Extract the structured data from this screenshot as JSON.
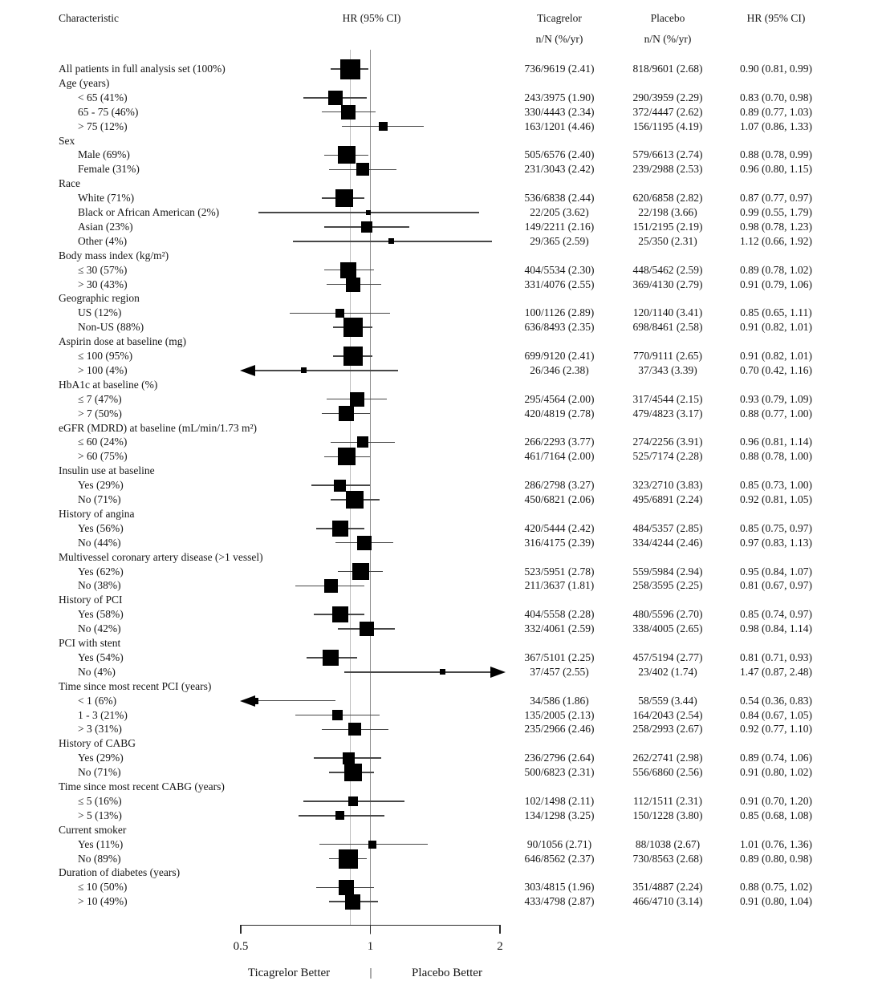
{
  "figure": {
    "col_headers": {
      "characteristic": "Characteristic",
      "plot_hr": "HR (95% CI)",
      "ticagrelor": "Ticagrelor",
      "placebo": "Placebo",
      "rate_unit": "n/N (%/yr)",
      "hr_col": "HR (95% CI)"
    },
    "footer": {
      "left_label": "Ticagrelor Better",
      "separator": "|",
      "right_label": "Placebo Better"
    }
  },
  "chart_data": {
    "type": "forest",
    "x_scale": "log",
    "xlim": [
      0.5,
      2
    ],
    "x_ticks": [
      "0.5",
      "1",
      "2"
    ],
    "reference_line_hr": 1.0,
    "overall_hr_line": 0.9,
    "columns": [
      "Characteristic",
      "HR (95% CI)",
      "Ticagrelor n/N (%/yr)",
      "Placebo n/N (%/yr)",
      "HR (95% CI)"
    ],
    "rows": [
      {
        "label": "All patients in full analysis set (100%)",
        "indent": false,
        "weight_pct": 100,
        "ticagrelor": "736/9619 (2.41)",
        "placebo": "818/9601 (2.68)",
        "hr_text": "0.90 (0.81, 0.99)",
        "hr": 0.9,
        "lo": 0.81,
        "hi": 0.99,
        "arrow": null
      },
      {
        "label": "Age (years)",
        "group": true
      },
      {
        "label": "< 65 (41%)",
        "indent": true,
        "weight_pct": 41,
        "ticagrelor": "243/3975 (1.90)",
        "placebo": "290/3959 (2.29)",
        "hr_text": "0.83 (0.70, 0.98)",
        "hr": 0.83,
        "lo": 0.7,
        "hi": 0.98,
        "arrow": null
      },
      {
        "label": "65 - 75 (46%)",
        "indent": true,
        "weight_pct": 46,
        "ticagrelor": "330/4443 (2.34)",
        "placebo": "372/4447 (2.62)",
        "hr_text": "0.89 (0.77, 1.03)",
        "hr": 0.89,
        "lo": 0.77,
        "hi": 1.03,
        "arrow": null
      },
      {
        "label": "> 75 (12%)",
        "indent": true,
        "weight_pct": 12,
        "ticagrelor": "163/1201 (4.46)",
        "placebo": "156/1195 (4.19)",
        "hr_text": "1.07 (0.86, 1.33)",
        "hr": 1.07,
        "lo": 0.86,
        "hi": 1.33,
        "arrow": null
      },
      {
        "label": "Sex",
        "group": true
      },
      {
        "label": "Male (69%)",
        "indent": true,
        "weight_pct": 69,
        "ticagrelor": "505/6576 (2.40)",
        "placebo": "579/6613 (2.74)",
        "hr_text": "0.88 (0.78, 0.99)",
        "hr": 0.88,
        "lo": 0.78,
        "hi": 0.99,
        "arrow": null
      },
      {
        "label": "Female (31%)",
        "indent": true,
        "weight_pct": 31,
        "ticagrelor": "231/3043 (2.42)",
        "placebo": "239/2988 (2.53)",
        "hr_text": "0.96 (0.80, 1.15)",
        "hr": 0.96,
        "lo": 0.8,
        "hi": 1.15,
        "arrow": null
      },
      {
        "label": "Race",
        "group": true
      },
      {
        "label": "White (71%)",
        "indent": true,
        "weight_pct": 71,
        "ticagrelor": "536/6838 (2.44)",
        "placebo": "620/6858 (2.82)",
        "hr_text": "0.87 (0.77, 0.97)",
        "hr": 0.87,
        "lo": 0.77,
        "hi": 0.97,
        "arrow": null
      },
      {
        "label": "Black or African American (2%)",
        "indent": true,
        "weight_pct": 2,
        "ticagrelor": "22/205 (3.62)",
        "placebo": "22/198 (3.66)",
        "hr_text": "0.99 (0.55, 1.79)",
        "hr": 0.99,
        "lo": 0.55,
        "hi": 1.79,
        "arrow": null
      },
      {
        "label": "Asian (23%)",
        "indent": true,
        "weight_pct": 23,
        "ticagrelor": "149/2211 (2.16)",
        "placebo": "151/2195 (2.19)",
        "hr_text": "0.98 (0.78, 1.23)",
        "hr": 0.98,
        "lo": 0.78,
        "hi": 1.23,
        "arrow": null
      },
      {
        "label": "Other (4%)",
        "indent": true,
        "weight_pct": 4,
        "ticagrelor": "29/365 (2.59)",
        "placebo": "25/350 (2.31)",
        "hr_text": "1.12 (0.66, 1.92)",
        "hr": 1.12,
        "lo": 0.66,
        "hi": 1.92,
        "arrow": null
      },
      {
        "label": "Body mass index (kg/m²)",
        "group": true
      },
      {
        "label": "≤ 30 (57%)",
        "indent": true,
        "weight_pct": 57,
        "ticagrelor": "404/5534 (2.30)",
        "placebo": "448/5462 (2.59)",
        "hr_text": "0.89 (0.78, 1.02)",
        "hr": 0.89,
        "lo": 0.78,
        "hi": 1.02,
        "arrow": null
      },
      {
        "label": "> 30 (43%)",
        "indent": true,
        "weight_pct": 43,
        "ticagrelor": "331/4076 (2.55)",
        "placebo": "369/4130 (2.79)",
        "hr_text": "0.91 (0.79, 1.06)",
        "hr": 0.91,
        "lo": 0.79,
        "hi": 1.06,
        "arrow": null
      },
      {
        "label": "Geographic region",
        "group": true
      },
      {
        "label": "US (12%)",
        "indent": true,
        "weight_pct": 12,
        "ticagrelor": "100/1126 (2.89)",
        "placebo": "120/1140 (3.41)",
        "hr_text": "0.85 (0.65, 1.11)",
        "hr": 0.85,
        "lo": 0.65,
        "hi": 1.11,
        "arrow": null
      },
      {
        "label": "Non-US (88%)",
        "indent": true,
        "weight_pct": 88,
        "ticagrelor": "636/8493 (2.35)",
        "placebo": "698/8461 (2.58)",
        "hr_text": "0.91 (0.82, 1.01)",
        "hr": 0.91,
        "lo": 0.82,
        "hi": 1.01,
        "arrow": null
      },
      {
        "label": "Aspirin dose at baseline (mg)",
        "group": true
      },
      {
        "label": "≤ 100 (95%)",
        "indent": true,
        "weight_pct": 95,
        "ticagrelor": "699/9120 (2.41)",
        "placebo": "770/9111 (2.65)",
        "hr_text": "0.91 (0.82, 1.01)",
        "hr": 0.91,
        "lo": 0.82,
        "hi": 1.01,
        "arrow": null
      },
      {
        "label": "> 100 (4%)",
        "indent": true,
        "weight_pct": 4,
        "ticagrelor": "26/346 (2.38)",
        "placebo": "37/343 (3.39)",
        "hr_text": "0.70 (0.42, 1.16)",
        "hr": 0.7,
        "lo": 0.42,
        "hi": 1.16,
        "arrow": "left"
      },
      {
        "label": "HbA1c at baseline (%)",
        "group": true
      },
      {
        "label": "≤ 7 (47%)",
        "indent": true,
        "weight_pct": 47,
        "ticagrelor": "295/4564 (2.00)",
        "placebo": "317/4544 (2.15)",
        "hr_text": "0.93 (0.79, 1.09)",
        "hr": 0.93,
        "lo": 0.79,
        "hi": 1.09,
        "arrow": null
      },
      {
        "label": "> 7 (50%)",
        "indent": true,
        "weight_pct": 50,
        "ticagrelor": "420/4819 (2.78)",
        "placebo": "479/4823 (3.17)",
        "hr_text": "0.88 (0.77, 1.00)",
        "hr": 0.88,
        "lo": 0.77,
        "hi": 1.0,
        "arrow": null
      },
      {
        "label": "eGFR (MDRD) at baseline (mL/min/1.73 m²)",
        "group": true
      },
      {
        "label": "≤ 60 (24%)",
        "indent": true,
        "weight_pct": 24,
        "ticagrelor": "266/2293 (3.77)",
        "placebo": "274/2256 (3.91)",
        "hr_text": "0.96 (0.81, 1.14)",
        "hr": 0.96,
        "lo": 0.81,
        "hi": 1.14,
        "arrow": null
      },
      {
        "label": "> 60 (75%)",
        "indent": true,
        "weight_pct": 75,
        "ticagrelor": "461/7164 (2.00)",
        "placebo": "525/7174 (2.28)",
        "hr_text": "0.88 (0.78, 1.00)",
        "hr": 0.88,
        "lo": 0.78,
        "hi": 1.0,
        "arrow": null
      },
      {
        "label": "Insulin use at baseline",
        "group": true
      },
      {
        "label": "Yes (29%)",
        "indent": true,
        "weight_pct": 29,
        "ticagrelor": "286/2798 (3.27)",
        "placebo": "323/2710 (3.83)",
        "hr_text": "0.85 (0.73, 1.00)",
        "hr": 0.85,
        "lo": 0.73,
        "hi": 1.0,
        "arrow": null
      },
      {
        "label": "No (71%)",
        "indent": true,
        "weight_pct": 71,
        "ticagrelor": "450/6821 (2.06)",
        "placebo": "495/6891 (2.24)",
        "hr_text": "0.92 (0.81, 1.05)",
        "hr": 0.92,
        "lo": 0.81,
        "hi": 1.05,
        "arrow": null
      },
      {
        "label": "History of angina",
        "group": true
      },
      {
        "label": "Yes (56%)",
        "indent": true,
        "weight_pct": 56,
        "ticagrelor": "420/5444 (2.42)",
        "placebo": "484/5357 (2.85)",
        "hr_text": "0.85 (0.75, 0.97)",
        "hr": 0.85,
        "lo": 0.75,
        "hi": 0.97,
        "arrow": null
      },
      {
        "label": "No (44%)",
        "indent": true,
        "weight_pct": 44,
        "ticagrelor": "316/4175 (2.39)",
        "placebo": "334/4244 (2.46)",
        "hr_text": "0.97 (0.83, 1.13)",
        "hr": 0.97,
        "lo": 0.83,
        "hi": 1.13,
        "arrow": null
      },
      {
        "label": "Multivessel coronary artery disease (>1 vessel)",
        "group": true
      },
      {
        "label": "Yes (62%)",
        "indent": true,
        "weight_pct": 62,
        "ticagrelor": "523/5951 (2.78)",
        "placebo": "559/5984 (2.94)",
        "hr_text": "0.95 (0.84, 1.07)",
        "hr": 0.95,
        "lo": 0.84,
        "hi": 1.07,
        "arrow": null
      },
      {
        "label": "No (38%)",
        "indent": true,
        "weight_pct": 38,
        "ticagrelor": "211/3637 (1.81)",
        "placebo": "258/3595 (2.25)",
        "hr_text": "0.81 (0.67, 0.97)",
        "hr": 0.81,
        "lo": 0.67,
        "hi": 0.97,
        "arrow": null
      },
      {
        "label": "History of PCI",
        "group": true
      },
      {
        "label": "Yes (58%)",
        "indent": true,
        "weight_pct": 58,
        "ticagrelor": "404/5558 (2.28)",
        "placebo": "480/5596 (2.70)",
        "hr_text": "0.85 (0.74, 0.97)",
        "hr": 0.85,
        "lo": 0.74,
        "hi": 0.97,
        "arrow": null
      },
      {
        "label": "No (42%)",
        "indent": true,
        "weight_pct": 42,
        "ticagrelor": "332/4061 (2.59)",
        "placebo": "338/4005 (2.65)",
        "hr_text": "0.98 (0.84, 1.14)",
        "hr": 0.98,
        "lo": 0.84,
        "hi": 1.14,
        "arrow": null
      },
      {
        "label": "PCI with stent",
        "group": true
      },
      {
        "label": "Yes (54%)",
        "indent": true,
        "weight_pct": 54,
        "ticagrelor": "367/5101 (2.25)",
        "placebo": "457/5194 (2.77)",
        "hr_text": "0.81 (0.71, 0.93)",
        "hr": 0.81,
        "lo": 0.71,
        "hi": 0.93,
        "arrow": null
      },
      {
        "label": "No (4%)",
        "indent": true,
        "weight_pct": 4,
        "ticagrelor": "37/457 (2.55)",
        "placebo": "23/402 (1.74)",
        "hr_text": "1.47 (0.87, 2.48)",
        "hr": 1.47,
        "lo": 0.87,
        "hi": 2.48,
        "arrow": "right"
      },
      {
        "label": "Time since most recent PCI (years)",
        "group": true
      },
      {
        "label": "< 1 (6%)",
        "indent": true,
        "weight_pct": 6,
        "ticagrelor": "34/586 (1.86)",
        "placebo": "58/559 (3.44)",
        "hr_text": "0.54 (0.36, 0.83)",
        "hr": 0.54,
        "lo": 0.36,
        "hi": 0.83,
        "arrow": "left"
      },
      {
        "label": "1 - 3 (21%)",
        "indent": true,
        "weight_pct": 21,
        "ticagrelor": "135/2005 (2.13)",
        "placebo": "164/2043 (2.54)",
        "hr_text": "0.84 (0.67, 1.05)",
        "hr": 0.84,
        "lo": 0.67,
        "hi": 1.05,
        "arrow": null
      },
      {
        "label": "> 3 (31%)",
        "indent": true,
        "weight_pct": 31,
        "ticagrelor": "235/2966 (2.46)",
        "placebo": "258/2993 (2.67)",
        "hr_text": "0.92 (0.77, 1.10)",
        "hr": 0.92,
        "lo": 0.77,
        "hi": 1.1,
        "arrow": null
      },
      {
        "label": "History of CABG",
        "group": true
      },
      {
        "label": "Yes (29%)",
        "indent": true,
        "weight_pct": 29,
        "ticagrelor": "236/2796 (2.64)",
        "placebo": "262/2741 (2.98)",
        "hr_text": "0.89 (0.74, 1.06)",
        "hr": 0.89,
        "lo": 0.74,
        "hi": 1.06,
        "arrow": null
      },
      {
        "label": "No (71%)",
        "indent": true,
        "weight_pct": 71,
        "ticagrelor": "500/6823 (2.31)",
        "placebo": "556/6860 (2.56)",
        "hr_text": "0.91 (0.80, 1.02)",
        "hr": 0.91,
        "lo": 0.8,
        "hi": 1.02,
        "arrow": null
      },
      {
        "label": "Time since most recent CABG (years)",
        "group": true
      },
      {
        "label": "≤ 5 (16%)",
        "indent": true,
        "weight_pct": 16,
        "ticagrelor": "102/1498 (2.11)",
        "placebo": "112/1511 (2.31)",
        "hr_text": "0.91 (0.70, 1.20)",
        "hr": 0.91,
        "lo": 0.7,
        "hi": 1.2,
        "arrow": null
      },
      {
        "label": "> 5 (13%)",
        "indent": true,
        "weight_pct": 13,
        "ticagrelor": "134/1298 (3.25)",
        "placebo": "150/1228 (3.80)",
        "hr_text": "0.85 (0.68, 1.08)",
        "hr": 0.85,
        "lo": 0.68,
        "hi": 1.08,
        "arrow": null
      },
      {
        "label": "Current smoker",
        "group": true
      },
      {
        "label": "Yes (11%)",
        "indent": true,
        "weight_pct": 11,
        "ticagrelor": "90/1056 (2.71)",
        "placebo": "88/1038 (2.67)",
        "hr_text": "1.01 (0.76, 1.36)",
        "hr": 1.01,
        "lo": 0.76,
        "hi": 1.36,
        "arrow": null
      },
      {
        "label": "No (89%)",
        "indent": true,
        "weight_pct": 89,
        "ticagrelor": "646/8562 (2.37)",
        "placebo": "730/8563 (2.68)",
        "hr_text": "0.89 (0.80, 0.98)",
        "hr": 0.89,
        "lo": 0.8,
        "hi": 0.98,
        "arrow": null
      },
      {
        "label": "Duration of diabetes (years)",
        "group": true
      },
      {
        "label": "≤ 10 (50%)",
        "indent": true,
        "weight_pct": 50,
        "ticagrelor": "303/4815 (1.96)",
        "placebo": "351/4887 (2.24)",
        "hr_text": "0.88 (0.75, 1.02)",
        "hr": 0.88,
        "lo": 0.75,
        "hi": 1.02,
        "arrow": null
      },
      {
        "label": "> 10 (49%)",
        "indent": true,
        "weight_pct": 49,
        "ticagrelor": "433/4798 (2.87)",
        "placebo": "466/4710 (3.14)",
        "hr_text": "0.91 (0.80, 1.04)",
        "hr": 0.91,
        "lo": 0.8,
        "hi": 1.04,
        "arrow": null
      }
    ],
    "footer": {
      "left": "Ticagrelor Better",
      "separator": "|",
      "right": "Placebo Better"
    }
  }
}
